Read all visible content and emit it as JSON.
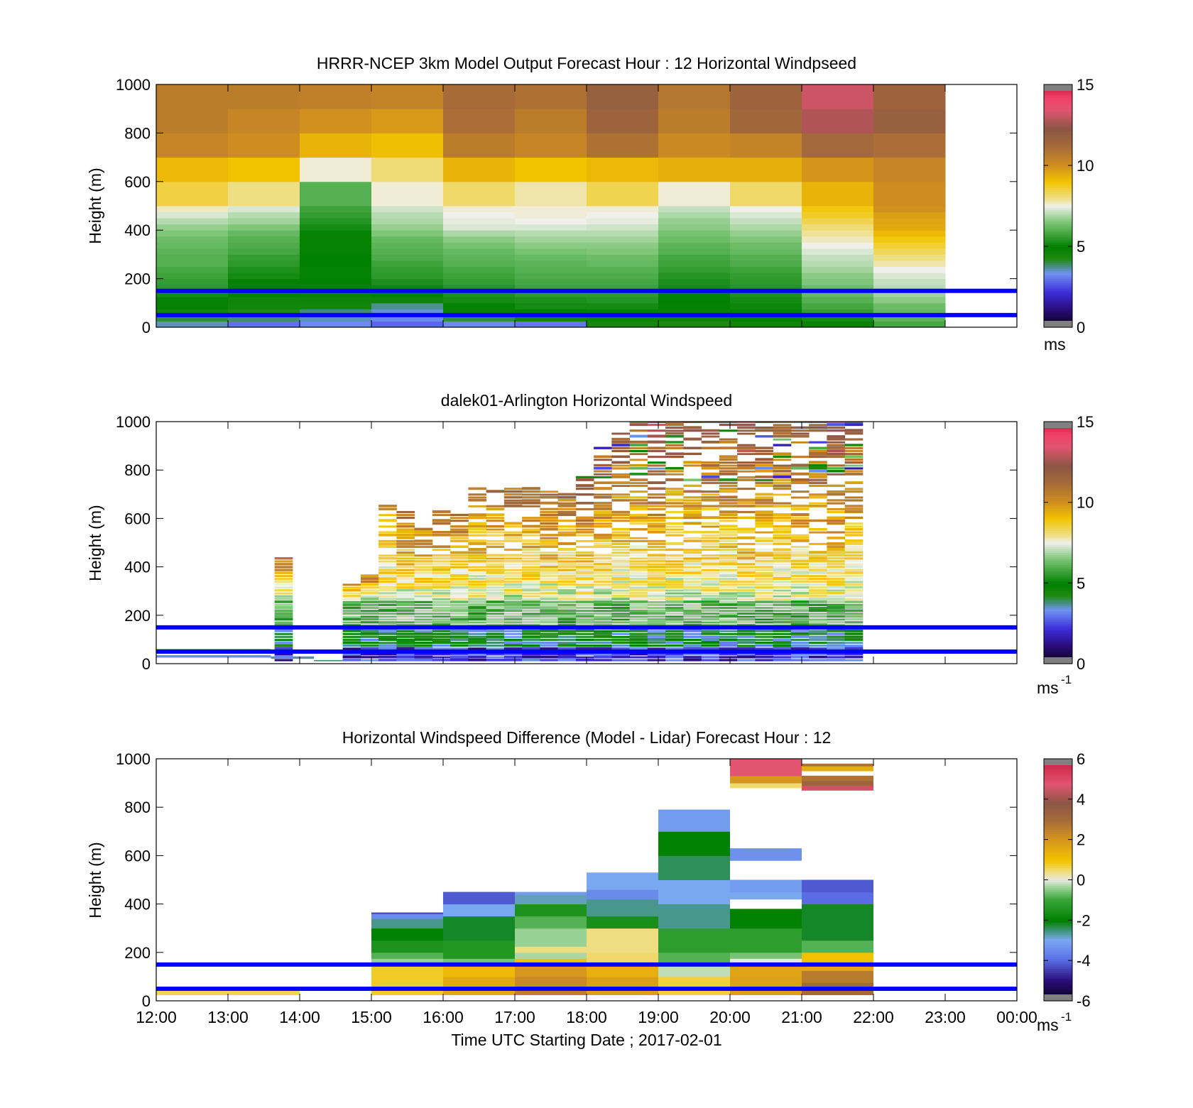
{
  "colormaps": {
    "speed": [
      [
        0.0,
        "#080218"
      ],
      [
        0.07,
        "#2a0c7a"
      ],
      [
        0.14,
        "#3b2cd9"
      ],
      [
        0.22,
        "#6f93f2"
      ],
      [
        0.28,
        "#1e8a10"
      ],
      [
        0.33,
        "#008000"
      ],
      [
        0.43,
        "#79c473"
      ],
      [
        0.5,
        "#f0f0ea"
      ],
      [
        0.53,
        "#efe08a"
      ],
      [
        0.6,
        "#f2c400"
      ],
      [
        0.67,
        "#d08d20"
      ],
      [
        0.75,
        "#a46a39"
      ],
      [
        0.82,
        "#8b5645"
      ],
      [
        0.9,
        "#e25470"
      ],
      [
        0.95,
        "#f0406a"
      ],
      [
        1.0,
        "#c81e3c"
      ]
    ],
    "diff": [
      [
        0.0,
        "#080218"
      ],
      [
        0.08,
        "#2a0c7a"
      ],
      [
        0.17,
        "#5b70e8"
      ],
      [
        0.25,
        "#7aa8f0"
      ],
      [
        0.33,
        "#008000"
      ],
      [
        0.42,
        "#3aa63a"
      ],
      [
        0.47,
        "#9fd49a"
      ],
      [
        0.5,
        "#e8e8e0"
      ],
      [
        0.53,
        "#efe08a"
      ],
      [
        0.58,
        "#f2c400"
      ],
      [
        0.67,
        "#d5951f"
      ],
      [
        0.75,
        "#a46a39"
      ],
      [
        0.82,
        "#8b5645"
      ],
      [
        0.9,
        "#e25470"
      ],
      [
        1.0,
        "#c81e3c"
      ]
    ],
    "end_cap_color": "#808080"
  },
  "reference_lines": {
    "heights_m": [
      150,
      50
    ],
    "color": "#0000ff"
  },
  "xaxis": {
    "label": "Time UTC  Starting Date ; 2017-02-01",
    "ticks": [
      "12:00",
      "13:00",
      "14:00",
      "15:00",
      "16:00",
      "17:00",
      "18:00",
      "19:00",
      "20:00",
      "21:00",
      "22:00",
      "23:00",
      "00:00"
    ],
    "range_hours": [
      12,
      24
    ]
  },
  "chart_data": [
    {
      "type": "heatmap",
      "title": "HRRR-NCEP 3km Model Output   Forecast Hour : 12 Horizontal Windpseed",
      "ylabel": "Height (m)",
      "ylim": [
        0,
        1000
      ],
      "yticks": [
        "1000",
        "800",
        "600",
        "400",
        "200",
        "0"
      ],
      "colorbar": {
        "range": [
          0,
          15
        ],
        "ticks": [
          "15",
          "10",
          "5",
          "0"
        ],
        "unit": "ms"
      },
      "colormap": "speed",
      "x_start_hours": [
        12,
        13,
        14,
        15,
        16,
        17,
        18,
        19,
        20,
        21,
        22
      ],
      "bin_hours": 1,
      "height_levels_m": [
        0,
        25,
        50,
        75,
        100,
        125,
        150,
        175,
        200,
        225,
        250,
        275,
        300,
        325,
        350,
        375,
        400,
        425,
        450,
        475,
        500,
        600,
        700,
        800,
        900,
        1000
      ],
      "values_ms": [
        [
          3.5,
          4.0,
          4.5,
          4.8,
          5.0,
          5.2,
          5.5,
          5.6,
          5.7,
          5.8,
          6.0,
          6.0,
          6.1,
          6.2,
          6.3,
          6.5,
          6.7,
          7.0,
          7.3,
          7.7,
          8.5,
          9.2,
          10.3,
          10.6,
          10.6
        ],
        [
          2.9,
          3.8,
          4.2,
          4.5,
          4.6,
          4.8,
          4.9,
          5.0,
          5.2,
          5.3,
          5.5,
          5.6,
          5.8,
          5.9,
          6.0,
          6.2,
          6.5,
          6.8,
          7.0,
          7.3,
          8.0,
          9.0,
          10.1,
          10.3,
          10.6
        ],
        [
          3.2,
          3.5,
          3.8,
          4.5,
          4.6,
          4.7,
          4.8,
          4.9,
          5.0,
          5.0,
          4.9,
          4.9,
          4.8,
          4.8,
          4.8,
          5.0,
          5.2,
          5.4,
          5.6,
          5.7,
          6.0,
          7.6,
          9.3,
          10.0,
          10.5
        ],
        [
          2.8,
          3.2,
          3.4,
          3.7,
          4.6,
          4.9,
          5.1,
          5.3,
          5.5,
          5.6,
          5.7,
          5.9,
          6.0,
          6.1,
          6.2,
          6.5,
          6.7,
          6.9,
          7.0,
          7.2,
          7.6,
          8.1,
          9.1,
          9.8,
          10.4
        ],
        [
          3.2,
          4.0,
          4.8,
          5.0,
          5.2,
          5.3,
          5.4,
          5.6,
          5.7,
          5.8,
          6.0,
          6.1,
          6.2,
          6.4,
          6.6,
          6.9,
          7.3,
          7.4,
          7.5,
          7.6,
          8.2,
          9.3,
          10.6,
          11.1,
          11.2
        ],
        [
          3.0,
          4.5,
          4.9,
          5.2,
          5.3,
          5.5,
          5.7,
          5.8,
          5.9,
          6.0,
          6.1,
          6.2,
          6.4,
          6.6,
          6.8,
          7.0,
          7.3,
          7.5,
          7.6,
          7.6,
          7.8,
          9.0,
          10.3,
          10.6,
          11.0
        ],
        [
          4.4,
          4.6,
          5.0,
          5.2,
          5.4,
          5.5,
          5.7,
          5.8,
          5.9,
          6.0,
          6.2,
          6.3,
          6.5,
          6.6,
          6.8,
          7.0,
          7.2,
          7.4,
          7.5,
          7.6,
          8.4,
          9.2,
          11.0,
          11.6,
          11.8
        ],
        [
          4.3,
          4.6,
          4.7,
          4.8,
          4.9,
          5.0,
          5.2,
          5.3,
          5.4,
          5.6,
          5.7,
          5.8,
          6.0,
          6.1,
          6.3,
          6.4,
          6.6,
          6.7,
          6.9,
          7.1,
          7.6,
          9.4,
          10.2,
          10.6,
          10.8
        ],
        [
          4.6,
          4.8,
          5.0,
          5.1,
          5.2,
          5.3,
          5.4,
          5.5,
          5.6,
          5.7,
          5.9,
          6.0,
          6.2,
          6.3,
          6.5,
          6.7,
          6.9,
          7.1,
          7.3,
          7.5,
          8.2,
          9.4,
          10.4,
          11.4,
          11.6
        ],
        [
          4.7,
          5.2,
          5.6,
          5.8,
          6.0,
          6.2,
          6.3,
          6.5,
          6.6,
          6.8,
          7.0,
          7.1,
          7.3,
          7.5,
          7.7,
          7.9,
          8.1,
          8.4,
          8.7,
          8.9,
          9.3,
          9.9,
          11.3,
          12.8,
          13.2
        ],
        [
          5.8,
          6.1,
          6.2,
          6.3,
          6.6,
          6.8,
          7.0,
          7.1,
          7.3,
          7.5,
          7.8,
          8.0,
          8.3,
          8.6,
          8.9,
          9.2,
          9.5,
          9.6,
          9.7,
          10.0,
          10.1,
          10.3,
          11.1,
          11.8,
          11.6
        ]
      ]
    },
    {
      "type": "heatmap",
      "title": "dalek01-Arlington  Horizontal Windspeed",
      "ylabel": "Height (m)",
      "ylim": [
        0,
        1000
      ],
      "yticks": [
        "1000",
        "800",
        "600",
        "400",
        "200",
        "0"
      ],
      "colorbar": {
        "range": [
          0,
          15
        ],
        "ticks": [
          "15",
          "10",
          "5",
          "0"
        ],
        "unit": "ms",
        "unit_exponent": "-1"
      },
      "colormap": "speed",
      "description_of_coverage": "sparse lidar retrievals 12:00-14:30 low levels; dense 14:30-21:50 up to 400-1000 m",
      "x_start_hours": [
        13.65,
        14.6,
        14.85,
        15.1,
        15.35,
        15.6,
        15.85,
        16.1,
        16.35,
        16.6,
        16.85,
        17.1,
        17.35,
        17.6,
        17.85,
        18.1,
        18.35,
        18.6,
        18.85,
        19.1,
        19.35,
        19.6,
        19.85,
        20.1,
        20.35,
        20.6,
        20.85,
        21.1,
        21.35,
        21.6
      ],
      "bin_hours": 0.25,
      "profile_top_m": [
        440,
        330,
        370,
        650,
        630,
        600,
        630,
        640,
        720,
        740,
        720,
        730,
        710,
        700,
        790,
        890,
        950,
        1000,
        1000,
        1000,
        1000,
        1000,
        1000,
        1000,
        1000,
        1000,
        1000,
        1000,
        1000,
        1000
      ],
      "profile_speed_at_top_ms": [
        11,
        11,
        11,
        10,
        11,
        11,
        11,
        11,
        11,
        11,
        11,
        11,
        11,
        11,
        12,
        12,
        12,
        12,
        13,
        12,
        12,
        12,
        12,
        13,
        12,
        12,
        12,
        12,
        13,
        12
      ]
    },
    {
      "type": "heatmap",
      "title": "Horizontal Windspeed Difference (Model - Lidar) Forecast Hour : 12",
      "ylabel": "Height (m)",
      "ylim": [
        0,
        1000
      ],
      "yticks": [
        "1000",
        "800",
        "600",
        "400",
        "200",
        "0"
      ],
      "colorbar": {
        "range": [
          -6,
          6
        ],
        "ticks": [
          "6",
          "4",
          "2",
          "0",
          "-2",
          "-4",
          "-6"
        ],
        "unit": "ms",
        "unit_exponent": "-1"
      },
      "colormap": "diff",
      "columns": [
        {
          "x_hours": [
            12,
            14
          ],
          "cells": [
            [
              25,
              50,
              0.6
            ]
          ]
        },
        {
          "x_hours": [
            15,
            16
          ],
          "cells": [
            [
              25,
              150,
              0.8
            ],
            [
              150,
              175,
              -0.4
            ],
            [
              175,
              200,
              -0.8
            ],
            [
              200,
              250,
              -1.5
            ],
            [
              250,
              300,
              -2.0
            ],
            [
              300,
              340,
              -2.6
            ],
            [
              340,
              360,
              -3.5
            ],
            [
              360,
              365,
              -4.4
            ]
          ]
        },
        {
          "x_hours": [
            16,
            17
          ],
          "cells": [
            [
              25,
              100,
              1.6
            ],
            [
              100,
              150,
              1.2
            ],
            [
              150,
              175,
              -0.6
            ],
            [
              175,
              250,
              -1.4
            ],
            [
              250,
              350,
              -2.2
            ],
            [
              350,
              380,
              -3.0
            ],
            [
              380,
              400,
              -3.0
            ],
            [
              400,
              450,
              -4.2
            ]
          ]
        },
        {
          "x_hours": [
            17,
            18
          ],
          "cells": [
            [
              25,
              50,
              2.5
            ],
            [
              50,
              100,
              2.3
            ],
            [
              100,
              150,
              2.0
            ],
            [
              150,
              175,
              1.0
            ],
            [
              175,
              200,
              -0.3
            ],
            [
              200,
              225,
              0.4
            ],
            [
              225,
              300,
              -0.4
            ],
            [
              300,
              350,
              -0.8
            ],
            [
              350,
              400,
              -1.5
            ],
            [
              400,
              440,
              -2.8
            ],
            [
              440,
              450,
              -3.2
            ]
          ]
        },
        {
          "x_hours": [
            18,
            19
          ],
          "cells": [
            [
              25,
              100,
              1.8
            ],
            [
              100,
              150,
              1.4
            ],
            [
              150,
              200,
              0.5
            ],
            [
              200,
              300,
              0.4
            ],
            [
              300,
              350,
              -1.6
            ],
            [
              350,
              420,
              -2.6
            ],
            [
              420,
              460,
              -3.5
            ],
            [
              460,
              530,
              -3.0
            ]
          ]
        },
        {
          "x_hours": [
            19,
            20
          ],
          "cells": [
            [
              25,
              100,
              0.7
            ],
            [
              100,
              150,
              -0.2
            ],
            [
              150,
              200,
              -0.8
            ],
            [
              200,
              300,
              -1.2
            ],
            [
              300,
              400,
              -2.6
            ],
            [
              400,
              500,
              -3.0
            ],
            [
              500,
              600,
              -2.4
            ],
            [
              600,
              700,
              -2.0
            ],
            [
              700,
              790,
              -3.2
            ]
          ]
        },
        {
          "x_hours": [
            20,
            21
          ],
          "cells": [
            [
              25,
              100,
              1.8
            ],
            [
              100,
              150,
              1.7
            ],
            [
              150,
              175,
              0.0
            ],
            [
              175,
              200,
              -0.6
            ],
            [
              200,
              300,
              -1.2
            ],
            [
              300,
              380,
              -2.0
            ],
            [
              420,
              450,
              -3.0
            ],
            [
              450,
              500,
              -3.2
            ],
            [
              580,
              630,
              -3.4
            ],
            [
              880,
              900,
              0.5
            ],
            [
              900,
              930,
              2.0
            ],
            [
              930,
              1000,
              4.8
            ]
          ]
        },
        {
          "x_hours": [
            21,
            22
          ],
          "cells": [
            [
              25,
              75,
              3.0
            ],
            [
              75,
              125,
              2.6
            ],
            [
              125,
              150,
              1.6
            ],
            [
              150,
              200,
              1.0
            ],
            [
              200,
              250,
              -0.8
            ],
            [
              250,
              400,
              -2.2
            ],
            [
              400,
              450,
              -4.0
            ],
            [
              450,
              500,
              -4.2
            ],
            [
              870,
              890,
              5.0
            ],
            [
              890,
              910,
              3.2
            ],
            [
              910,
              930,
              2.8
            ],
            [
              950,
              970,
              1.5
            ],
            [
              970,
              980,
              2.8
            ]
          ]
        }
      ]
    }
  ]
}
